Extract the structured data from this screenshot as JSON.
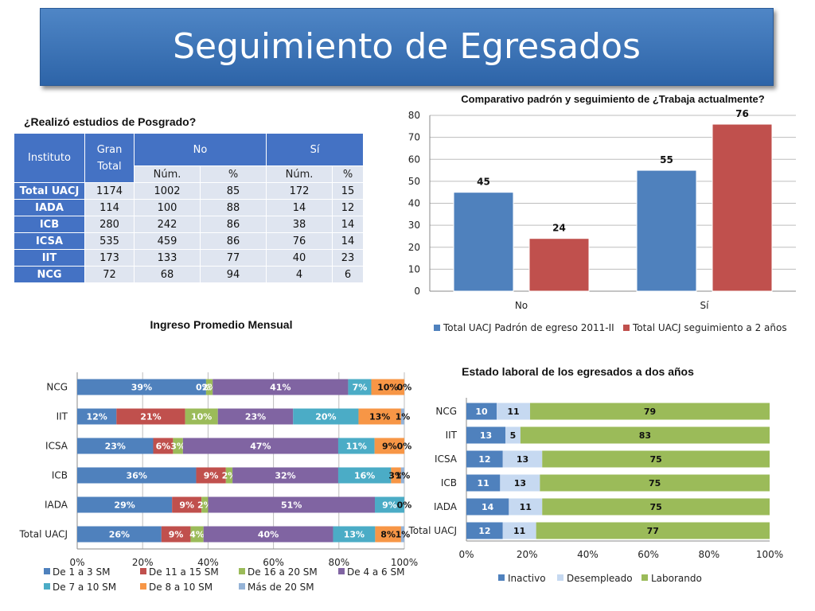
{
  "header": {
    "title": "Seguimiento de Egresados"
  },
  "posgrado": {
    "title": "¿Realizó estudios de Posgrado?",
    "headers": {
      "instituto": "Instituto",
      "gran_total": "Gran Total",
      "no": "No",
      "si": "Sí",
      "num": "Núm.",
      "pct": "%"
    },
    "rows": [
      [
        "Total UACJ",
        "1174",
        "1002",
        "85",
        "172",
        "15"
      ],
      [
        "IADA",
        "114",
        "100",
        "88",
        "14",
        "12"
      ],
      [
        "ICB",
        "280",
        "242",
        "86",
        "38",
        "14"
      ],
      [
        "ICSA",
        "535",
        "459",
        "86",
        "76",
        "14"
      ],
      [
        "IIT",
        "173",
        "133",
        "77",
        "40",
        "23"
      ],
      [
        "NCG",
        "72",
        "68",
        "94",
        "4",
        "6"
      ]
    ]
  },
  "chart_data": [
    {
      "type": "bar",
      "title": "Comparativo padrón y seguimiento de ¿Trabaja actualmente?",
      "categories": [
        "No",
        "Sí"
      ],
      "series": [
        {
          "name": "Total UACJ Padrón de egreso 2011-II",
          "values": [
            45,
            55
          ],
          "color": "#4f81bd"
        },
        {
          "name": "Total UACJ seguimiento a 2 años",
          "values": [
            24,
            76
          ],
          "color": "#c0504d"
        }
      ],
      "ylim": [
        0,
        80
      ],
      "yticks": [
        "0",
        "10",
        "20",
        "30",
        "40",
        "50",
        "60",
        "70",
        "80"
      ],
      "grid": true,
      "legend": "bottom"
    },
    {
      "type": "bar",
      "orientation": "horizontal",
      "stacked": "percent",
      "title": "Ingreso Promedio Mensual",
      "categories": [
        "NCG",
        "IIT",
        "ICSA",
        "ICB",
        "IADA",
        "Total UACJ"
      ],
      "series": [
        {
          "name": "De 1 a 3 SM",
          "values": [
            39,
            12,
            23,
            36,
            29,
            26
          ],
          "labels": [
            "39%",
            "12%",
            "23%",
            "36%",
            "29%",
            "26%"
          ],
          "color": "#4f81bd"
        },
        {
          "name": "De 11 a 15 SM",
          "values": [
            0,
            21,
            6,
            9,
            9,
            9
          ],
          "labels": [
            "",
            "21%",
            "6%",
            "9%",
            "9%",
            "9%"
          ],
          "color": "#c0504d"
        },
        {
          "name": "De 16 a 20 SM",
          "values": [
            2,
            10,
            3,
            2,
            2,
            4
          ],
          "labels": [
            "2%",
            "10%",
            "3%",
            "2%",
            "2%",
            "4%"
          ],
          "color": "#9bbb59"
        },
        {
          "name": "De 4 a 6 SM",
          "values": [
            41,
            23,
            47,
            32,
            51,
            40
          ],
          "labels": [
            "41%",
            "23%",
            "47%",
            "32%",
            "51%",
            "40%"
          ],
          "color": "#8064a2"
        },
        {
          "name": "De 7 a 10 SM",
          "values": [
            7,
            20,
            11,
            16,
            9,
            13
          ],
          "labels": [
            "7%",
            "20%",
            "11%",
            "16%",
            "9%",
            "13%"
          ],
          "color": "#4bacc6"
        },
        {
          "name": "De 8 a 10 SM",
          "values": [
            10,
            13,
            9,
            3,
            0,
            8
          ],
          "labels": [
            "10%",
            "13%",
            "9%",
            "3%",
            "0%",
            "8%"
          ],
          "color": "#f79646"
        },
        {
          "name": "Más de 20 SM",
          "values": [
            0,
            1,
            0,
            1,
            0,
            1
          ],
          "labels": [
            "0%",
            "1%",
            "0%",
            "1%",
            "",
            "1%"
          ],
          "color": "#95b3d7"
        }
      ],
      "extra_labels": [
        "0%",
        "",
        "",
        "",
        "",
        ""
      ],
      "xticks": [
        "0%",
        "20%",
        "40%",
        "60%",
        "80%",
        "100%"
      ],
      "xlim": [
        0,
        100
      ],
      "grid": true,
      "legend": "bottom"
    },
    {
      "type": "bar",
      "orientation": "horizontal",
      "stacked": "percent",
      "title": "Estado laboral de los egresados a dos años",
      "categories": [
        "NCG",
        "IIT",
        "ICSA",
        "ICB",
        "IADA",
        "Total UACJ"
      ],
      "series": [
        {
          "name": "Inactivo",
          "values": [
            10,
            13,
            12,
            11,
            14,
            12
          ],
          "color": "#4f81bd"
        },
        {
          "name": "Desempleado",
          "values": [
            11,
            5,
            13,
            13,
            11,
            11
          ],
          "color": "#c6d9f1"
        },
        {
          "name": "Laborando",
          "values": [
            79,
            83,
            75,
            75,
            75,
            77
          ],
          "color": "#9bbb59"
        }
      ],
      "xticks": [
        "0%",
        "20%",
        "40%",
        "60%",
        "80%",
        "100%"
      ],
      "xlim": [
        0,
        100
      ],
      "legend": "bottom"
    }
  ]
}
